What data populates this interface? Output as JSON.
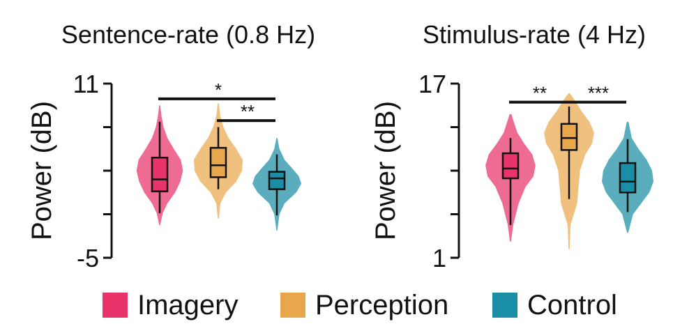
{
  "chart_data": [
    {
      "type": "violin",
      "title": "Sentence-rate (0.8 Hz)",
      "ylabel": "Power (dB)",
      "ylim": [
        -5,
        11
      ],
      "yticks": [
        -5,
        11
      ],
      "ytick_labels": [
        "-5",
        "11"
      ],
      "series": [
        {
          "name": "Imagery",
          "color": "#e8336b",
          "min": -0.9,
          "q1": 1.1,
          "median": 2.2,
          "q3": 4.2,
          "max": 7.5,
          "violin": [
            [
              -2.0,
              0.02
            ],
            [
              -0.9,
              0.12
            ],
            [
              0.0,
              0.3
            ],
            [
              1.0,
              0.6
            ],
            [
              2.0,
              0.8
            ],
            [
              3.0,
              0.9
            ],
            [
              4.0,
              0.82
            ],
            [
              5.0,
              0.55
            ],
            [
              6.0,
              0.3
            ],
            [
              7.0,
              0.15
            ],
            [
              8.0,
              0.07
            ],
            [
              9.0,
              0.02
            ]
          ]
        },
        {
          "name": "Perception",
          "color": "#e9a74c",
          "min": 1.3,
          "q1": 2.4,
          "median": 3.5,
          "q3": 5.1,
          "max": 7.0,
          "violin": [
            [
              -1.4,
              0.02
            ],
            [
              0.0,
              0.08
            ],
            [
              1.0,
              0.3
            ],
            [
              2.0,
              0.7
            ],
            [
              3.0,
              0.92
            ],
            [
              4.0,
              0.95
            ],
            [
              5.0,
              0.7
            ],
            [
              6.0,
              0.4
            ],
            [
              7.0,
              0.2
            ],
            [
              8.0,
              0.08
            ],
            [
              9.2,
              0.02
            ]
          ]
        },
        {
          "name": "Control",
          "color": "#1a8ea4",
          "min": -1.1,
          "q1": 1.3,
          "median": 2.3,
          "q3": 2.9,
          "max": 4.5,
          "violin": [
            [
              -2.5,
              0.02
            ],
            [
              -1.0,
              0.1
            ],
            [
              0.0,
              0.3
            ],
            [
              1.0,
              0.75
            ],
            [
              1.8,
              0.95
            ],
            [
              2.5,
              0.85
            ],
            [
              3.2,
              0.6
            ],
            [
              4.0,
              0.3
            ],
            [
              5.0,
              0.1
            ],
            [
              6.0,
              0.02
            ]
          ]
        }
      ],
      "significance": [
        {
          "from": "Imagery",
          "to": "Control",
          "label": "*",
          "y": 9.6
        },
        {
          "from": "Perception",
          "to": "Control",
          "label": "**",
          "y": 7.6
        }
      ]
    },
    {
      "type": "violin",
      "title": "Stimulus-rate (4 Hz)",
      "ylabel": "Power (dB)",
      "ylim": [
        1,
        17
      ],
      "yticks": [
        1,
        17
      ],
      "ytick_labels": [
        "1",
        "17"
      ],
      "series": [
        {
          "name": "Imagery",
          "color": "#e8336b",
          "min": 4.0,
          "q1": 8.3,
          "median": 9.2,
          "q3": 10.6,
          "max": 12.0,
          "violin": [
            [
              2.5,
              0.02
            ],
            [
              4.0,
              0.1
            ],
            [
              6.0,
              0.3
            ],
            [
              7.5,
              0.55
            ],
            [
              8.5,
              0.85
            ],
            [
              9.5,
              0.92
            ],
            [
              10.5,
              0.8
            ],
            [
              11.5,
              0.5
            ],
            [
              12.5,
              0.25
            ],
            [
              13.5,
              0.12
            ],
            [
              14.2,
              0.03
            ]
          ]
        },
        {
          "name": "Perception",
          "color": "#e9a74c",
          "min": 6.4,
          "q1": 10.9,
          "median": 12.0,
          "q3": 13.3,
          "max": 14.9,
          "violin": [
            [
              1.8,
              0.02
            ],
            [
              4.0,
              0.05
            ],
            [
              6.0,
              0.3
            ],
            [
              7.5,
              0.35
            ],
            [
              9.0,
              0.4
            ],
            [
              10.5,
              0.6
            ],
            [
              11.5,
              0.85
            ],
            [
              12.5,
              0.92
            ],
            [
              13.5,
              0.75
            ],
            [
              14.5,
              0.45
            ],
            [
              15.5,
              0.2
            ],
            [
              16.1,
              0.03
            ]
          ]
        },
        {
          "name": "Control",
          "color": "#1a8ea4",
          "min": 5.2,
          "q1": 7.0,
          "median": 8.0,
          "q3": 9.7,
          "max": 11.9,
          "violin": [
            [
              3.3,
              0.02
            ],
            [
              5.0,
              0.2
            ],
            [
              6.0,
              0.5
            ],
            [
              7.0,
              0.8
            ],
            [
              8.0,
              0.95
            ],
            [
              9.0,
              0.9
            ],
            [
              10.0,
              0.7
            ],
            [
              11.0,
              0.4
            ],
            [
              12.0,
              0.15
            ],
            [
              13.5,
              0.03
            ]
          ]
        }
      ],
      "significance": [
        {
          "from": "Imagery",
          "to": "Perception",
          "label": "**",
          "y": 15.3
        },
        {
          "from": "Perception",
          "to": "Control",
          "label": "***",
          "y": 15.3
        }
      ]
    }
  ],
  "legend": [
    {
      "label": "Imagery",
      "color": "#e8336b"
    },
    {
      "label": "Perception",
      "color": "#e9a74c"
    },
    {
      "label": "Control",
      "color": "#1a8ea4"
    }
  ]
}
